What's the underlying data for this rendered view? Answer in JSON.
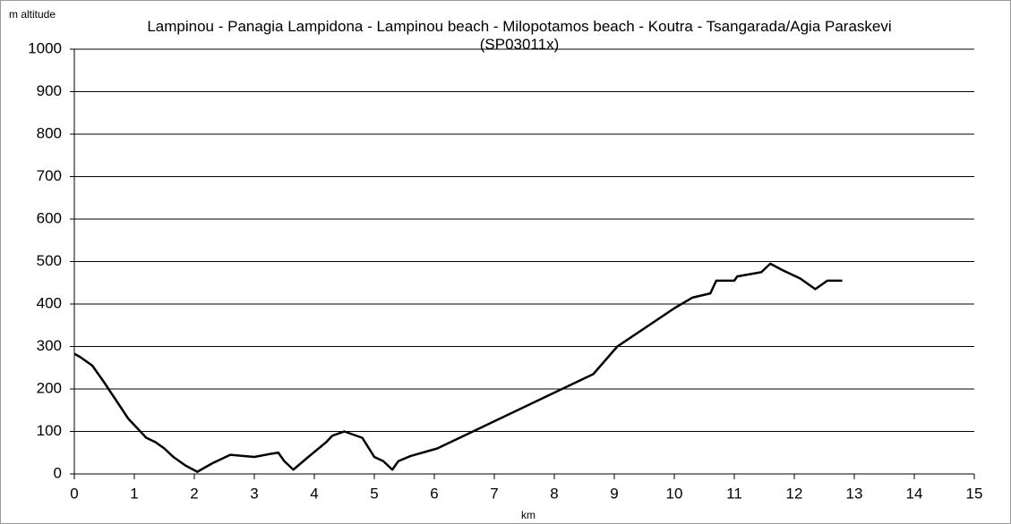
{
  "chart_data": {
    "type": "line",
    "title": "Lampinou - Panagia Lampidona - Lampinou beach - Milopotamos beach - Koutra - Tsangarada/Agia Paraskevi (SP03011x)",
    "y_label": "m altitude",
    "x_label": "km",
    "x": [
      0,
      0.1,
      0.3,
      0.5,
      0.9,
      1.2,
      1.35,
      1.5,
      1.65,
      1.85,
      2.05,
      2.3,
      2.6,
      3.0,
      3.3,
      3.4,
      3.5,
      3.65,
      3.9,
      4.2,
      4.3,
      4.5,
      4.7,
      4.8,
      5.0,
      5.15,
      5.3,
      5.4,
      5.6,
      6.05,
      8.65,
      9.05,
      10.0,
      10.3,
      10.6,
      10.7,
      11.0,
      11.05,
      11.45,
      11.6,
      11.8,
      12.1,
      12.35,
      12.55,
      12.8
    ],
    "series": [
      {
        "name": "altitude",
        "color": "#000000",
        "values": [
          283,
          275,
          255,
          215,
          130,
          85,
          75,
          60,
          40,
          20,
          5,
          25,
          45,
          40,
          48,
          50,
          30,
          10,
          40,
          75,
          90,
          100,
          90,
          85,
          40,
          30,
          10,
          30,
          42,
          60,
          235,
          300,
          390,
          415,
          425,
          455,
          455,
          465,
          475,
          495,
          480,
          460,
          435,
          455,
          455
        ]
      }
    ],
    "xlim": [
      0,
      15
    ],
    "xticks": [
      0,
      1,
      2,
      3,
      4,
      5,
      6,
      7,
      8,
      9,
      10,
      11,
      12,
      13,
      14,
      15
    ],
    "ylim": [
      0,
      1000
    ],
    "yticks": [
      0,
      100,
      200,
      300,
      400,
      500,
      600,
      700,
      800,
      900,
      1000
    ],
    "grid": true
  }
}
